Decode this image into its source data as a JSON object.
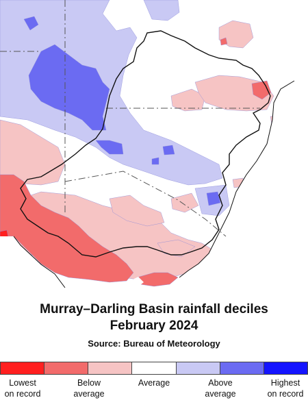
{
  "title_line1": "Murray–Darling Basin rainfall deciles",
  "title_line2": "February 2024",
  "source": "Source: Bureau of Meteorology",
  "legend": {
    "colors": [
      "#ff1f1f",
      "#f26b6b",
      "#f6c4c4",
      "#ffffff",
      "#c9c9f4",
      "#6b6bf2",
      "#1414ff"
    ],
    "labels": {
      "lowest_line1": "Lowest",
      "lowest_line2": "on record",
      "below_line1": "Below",
      "below_line2": "average",
      "average": "Average",
      "above_line1": "Above",
      "above_line2": "average",
      "highest_line1": "Highest",
      "highest_line2": "on record"
    }
  },
  "map_colors": {
    "lowest": "#ff1f1f",
    "very_much_below": "#f26b6b",
    "below": "#f6c4c4",
    "average": "#ffffff",
    "above": "#c9c9f4",
    "very_much_above": "#6b6bf2",
    "outline": "#111111",
    "ocean": "#ffffff"
  }
}
